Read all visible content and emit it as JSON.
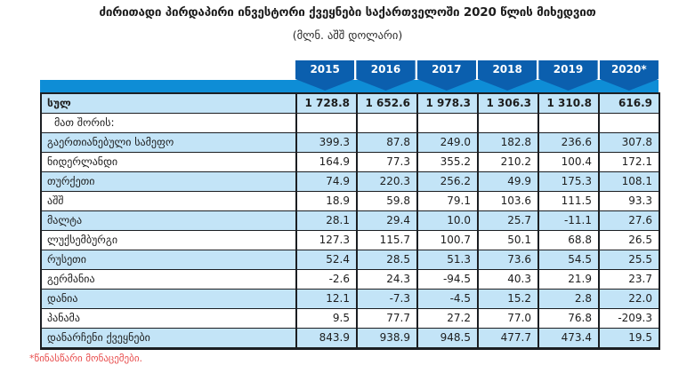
{
  "title": "ძირითადი პირდაპირი ინვესტორი ქვეყნები საქართველოში 2020 წლის მიხედვით",
  "subtitle": "(მლნ. აშშ დოლარი)",
  "footnote": "*წინასწარი მონაცემები.",
  "colors": {
    "year_header_blue": "#0b5fae",
    "band_blue": "#0e8dd6",
    "row_alt_blue": "#c3e4f7",
    "row_white": "#ffffff",
    "border_dark": "#1b1e22",
    "footnote_red": "#e84c4c",
    "text_dark": "#1d1d1d"
  },
  "chart_data": {
    "type": "table",
    "title": "ძირითადი პირდაპირი ინვესტორი ქვეყნები საქართველოში 2020 წლის მიხედვით",
    "unit_label": "(მლნ. აშშ დოლარი)",
    "years": [
      "2015",
      "2016",
      "2017",
      "2018",
      "2019",
      "2020*"
    ],
    "rows": [
      {
        "label": "სულ",
        "bold": true,
        "indent": false,
        "values": [
          "1 728.8",
          "1 652.6",
          "1 978.3",
          "1 306.3",
          "1 310.8",
          "616.9"
        ]
      },
      {
        "label": "მათ შორის:",
        "bold": false,
        "indent": true,
        "values": [
          "",
          "",
          "",
          "",
          "",
          ""
        ]
      },
      {
        "label": "გაერთიანებული სამეფო",
        "bold": false,
        "indent": false,
        "values": [
          "399.3",
          "87.8",
          "249.0",
          "182.8",
          "236.6",
          "307.8"
        ]
      },
      {
        "label": "ნიდერლანდი",
        "bold": false,
        "indent": false,
        "values": [
          "164.9",
          "77.3",
          "355.2",
          "210.2",
          "100.4",
          "172.1"
        ]
      },
      {
        "label": "თურქეთი",
        "bold": false,
        "indent": false,
        "values": [
          "74.9",
          "220.3",
          "256.2",
          "49.9",
          "175.3",
          "108.1"
        ]
      },
      {
        "label": "აშშ",
        "bold": false,
        "indent": false,
        "values": [
          "18.9",
          "59.8",
          "79.1",
          "103.6",
          "111.5",
          "93.3"
        ]
      },
      {
        "label": "მალტა",
        "bold": false,
        "indent": false,
        "values": [
          "28.1",
          "29.4",
          "10.0",
          "25.7",
          "-11.1",
          "27.6"
        ]
      },
      {
        "label": "ლუქსემბურგი",
        "bold": false,
        "indent": false,
        "values": [
          "127.3",
          "115.7",
          "100.7",
          "50.1",
          "68.8",
          "26.5"
        ]
      },
      {
        "label": "რუსეთი",
        "bold": false,
        "indent": false,
        "values": [
          "52.4",
          "28.5",
          "51.3",
          "73.6",
          "54.5",
          "25.5"
        ]
      },
      {
        "label": "გერმანია",
        "bold": false,
        "indent": false,
        "values": [
          "-2.6",
          "24.3",
          "-94.5",
          "40.3",
          "21.9",
          "23.7"
        ]
      },
      {
        "label": "დანია",
        "bold": false,
        "indent": false,
        "values": [
          "12.1",
          "-7.3",
          "-4.5",
          "15.2",
          "2.8",
          "22.0"
        ]
      },
      {
        "label": "პანამა",
        "bold": false,
        "indent": false,
        "values": [
          "9.5",
          "77.7",
          "27.2",
          "77.0",
          "76.8",
          "-209.3"
        ]
      },
      {
        "label": "დანარჩენი ქვეყნები",
        "bold": false,
        "indent": false,
        "values": [
          "843.9",
          "938.9",
          "948.5",
          "477.7",
          "473.4",
          "19.5"
        ]
      }
    ]
  }
}
